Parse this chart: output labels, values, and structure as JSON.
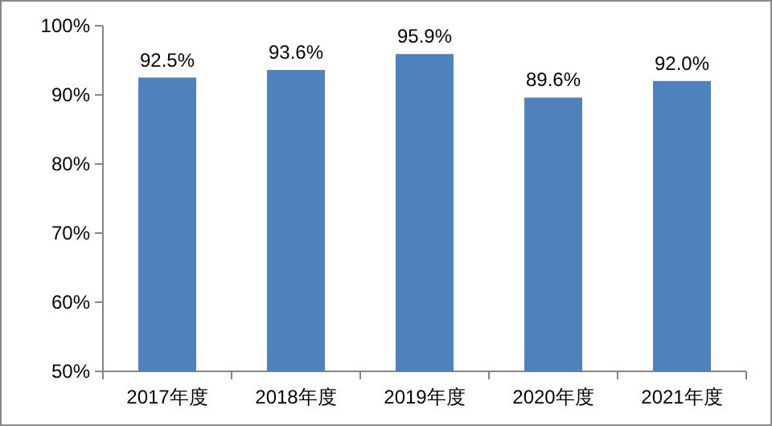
{
  "chart_data": {
    "type": "bar",
    "categories": [
      "2017年度",
      "2018年度",
      "2019年度",
      "2020年度",
      "2021年度"
    ],
    "values": [
      92.5,
      93.6,
      95.9,
      89.6,
      92.0
    ],
    "value_labels": [
      "92.5%",
      "93.6%",
      "95.9%",
      "89.6%",
      "92.0%"
    ],
    "color": "#4f81bd",
    "ylim": [
      50,
      100
    ],
    "yticks": [
      {
        "value": 50,
        "label": "50%"
      },
      {
        "value": 60,
        "label": "60%"
      },
      {
        "value": 70,
        "label": "70%"
      },
      {
        "value": 80,
        "label": "80%"
      },
      {
        "value": 90,
        "label": "90%"
      },
      {
        "value": 100,
        "label": "100%"
      }
    ],
    "grid": false
  }
}
